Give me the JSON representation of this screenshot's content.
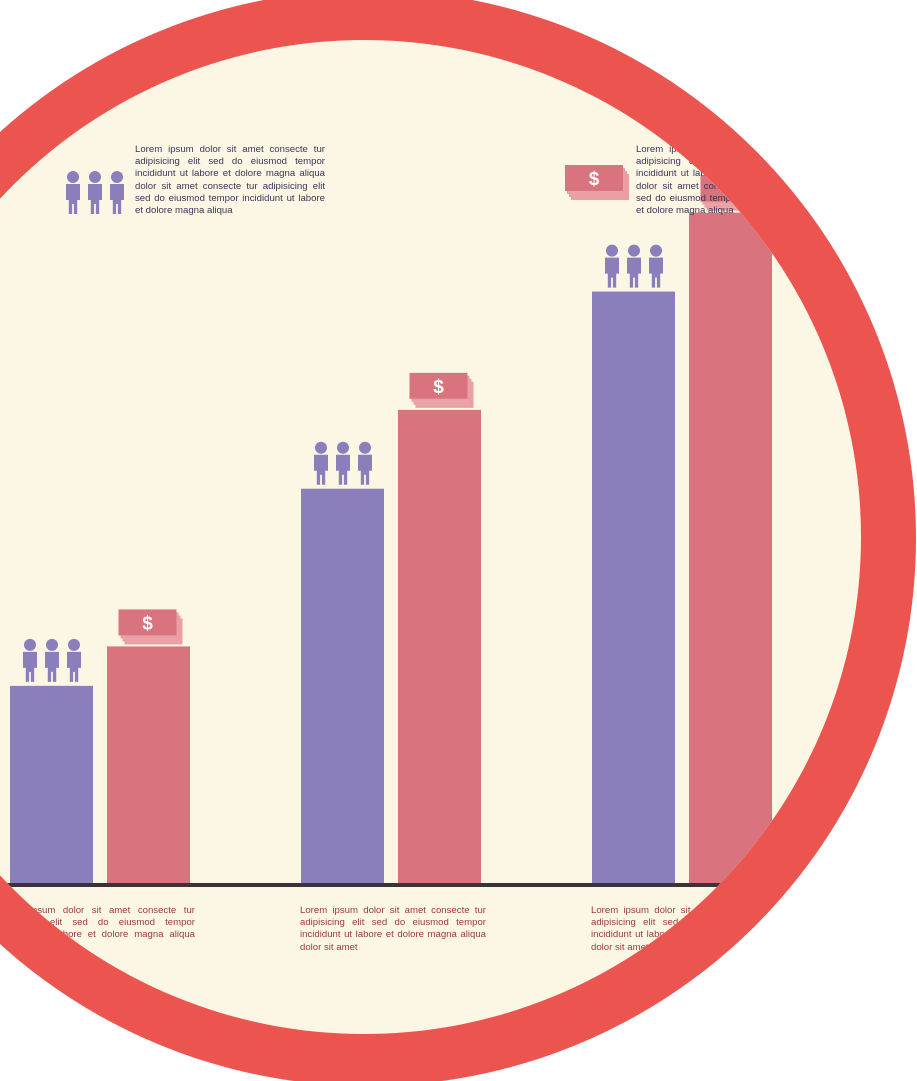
{
  "texts": {
    "top_left": "Lorem ipsum dolor sit amet consecte tur adipisicing elit sed do eiusmod tempor incididunt ut labore et dolore magna aliqua dolor sit amet consecte tur adipisicing elit sed do eiusmod tempor incididunt ut labore et dolore magna aliqua",
    "top_right": "Lorem ipsum dolor sit amet consecte tur adipisicing elit sed do eiusmod tempor incididunt ut labore et dolore magna aliqua dolor sit amet consecte tur adipisicing elit sed do eiusmod tempor incididunt ut labore et dolore magna aliqua",
    "bottom_1": "Lorem ipsum dolor sit amet consecte tur adipisicing elit sed do eiusmod tempor incididunt ut labore et dolore magna aliqua dolor sit amet",
    "bottom_2": "Lorem ipsum dolor sit amet consecte tur adipisicing elit sed do eiusmod tempor incididunt ut labore et dolore magna aliqua dolor sit amet",
    "bottom_3": "Lorem ipsum dolor sit amet consecte tur adipisicing elit sed do eiusmod tempor incididunt ut labore et dolore magna aliqua dolor sit amet"
  },
  "icons": {
    "people": "people-group-icon",
    "money": "dollar-bills-icon",
    "currency_symbol": "$"
  },
  "colors": {
    "ring": "#ec554f",
    "background": "#fcf6e4",
    "people_series": "#8a7fbb",
    "money_series": "#d9737d",
    "baseline": "#3a3338",
    "top_text": "#3b3556",
    "bottom_text": "#9b3a44"
  },
  "chart_data": {
    "type": "bar",
    "categories": [
      "",
      "",
      ""
    ],
    "series": [
      {
        "values": [
          1.0,
          2.0,
          3.0
        ],
        "icon": "people-group-icon",
        "color": "#8a7fbb"
      },
      {
        "values": [
          1.2,
          2.4,
          3.4
        ],
        "icon": "dollar-bills-icon",
        "color": "#d9737d"
      }
    ],
    "title": "",
    "xlabel": "",
    "ylabel": "",
    "ylim": [
      0,
      3.5
    ],
    "grid": false,
    "legend": "none"
  }
}
